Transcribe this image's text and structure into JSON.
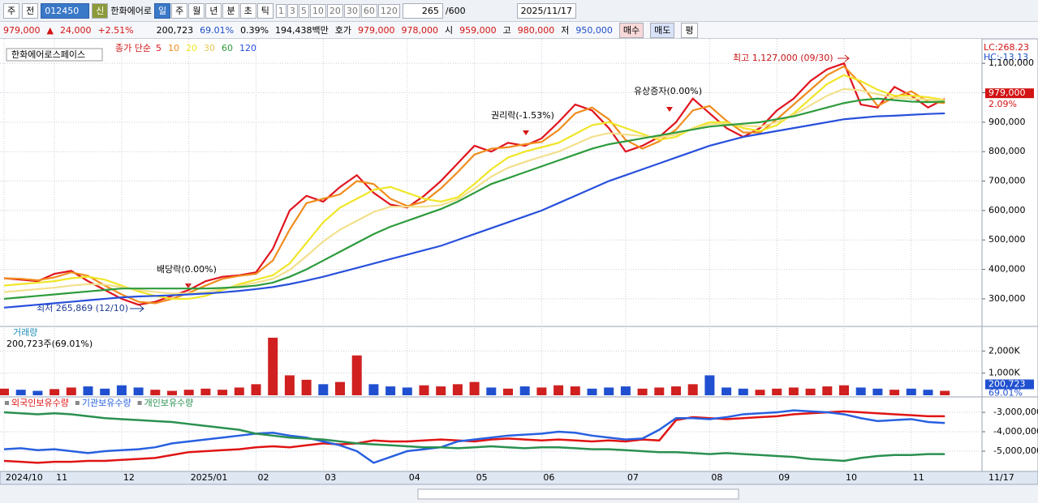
{
  "toolbar": {
    "period": "주",
    "prev": "전",
    "code": "012450",
    "name": "한화에어로",
    "credit": "신",
    "units": [
      "일",
      "주",
      "월",
      "년",
      "분",
      "초",
      "틱"
    ],
    "intervals": [
      "1",
      "3",
      "5",
      "10",
      "20",
      "30",
      "60",
      "120"
    ],
    "count": "265",
    "max": "/600",
    "date": "2025/11/17"
  },
  "info_bar": {
    "price": "979,000",
    "arrow": "▲",
    "change": "24,000",
    "change_pct": "+2.51%",
    "volume": "200,723",
    "volume_pct": "69.01%",
    "turnover_pct": "0.39%",
    "amount": "194,438백만",
    "quote_label": "호가",
    "ask": "979,000",
    "bid": "978,000",
    "open_label": "시",
    "open": "959,000",
    "high_label": "고",
    "high": "980,000",
    "low_label": "저",
    "low": "950,000",
    "buy": "매수",
    "sell": "매도",
    "avg": "평"
  },
  "chart_data": [
    {
      "type": "line",
      "title": "한화에어로스페이스",
      "legend_title": "종가 단순",
      "categories": [
        "2024/10",
        null,
        null,
        "11",
        null,
        null,
        null,
        "12",
        null,
        null,
        null,
        "2025/01",
        null,
        null,
        null,
        "02",
        null,
        null,
        null,
        "03",
        null,
        null,
        null,
        null,
        "04",
        null,
        null,
        null,
        "05",
        null,
        null,
        null,
        "06",
        null,
        null,
        null,
        null,
        "07",
        null,
        null,
        null,
        null,
        "08",
        null,
        null,
        null,
        "09",
        null,
        null,
        null,
        "10",
        null,
        null,
        null,
        "11",
        null,
        null
      ],
      "series": [
        {
          "name": "5",
          "color": "#e0141e",
          "values": [
            370000,
            365000,
            360000,
            385000,
            395000,
            360000,
            330000,
            300000,
            280000,
            290000,
            310000,
            330000,
            360000,
            375000,
            380000,
            390000,
            470000,
            600000,
            650000,
            630000,
            680000,
            720000,
            660000,
            620000,
            610000,
            650000,
            700000,
            760000,
            820000,
            800000,
            830000,
            820000,
            845000,
            900000,
            960000,
            940000,
            880000,
            800000,
            820000,
            850000,
            900000,
            980000,
            930000,
            880000,
            850000,
            880000,
            940000,
            980000,
            1040000,
            1080000,
            1100000,
            960000,
            950000,
            1020000,
            990000,
            950000,
            979000
          ]
        },
        {
          "name": "10",
          "color": "#f08c1e",
          "values": [
            370000,
            368000,
            363000,
            373000,
            390000,
            378000,
            345000,
            315000,
            290000,
            285000,
            300000,
            320000,
            345000,
            368000,
            378000,
            385000,
            430000,
            535000,
            625000,
            640000,
            655000,
            700000,
            690000,
            640000,
            615000,
            630000,
            675000,
            730000,
            790000,
            810000,
            815000,
            825000,
            833000,
            873000,
            930000,
            950000,
            910000,
            840000,
            810000,
            835000,
            875000,
            940000,
            955000,
            905000,
            865000,
            865000,
            910000,
            960000,
            1010000,
            1060000,
            1090000,
            1030000,
            955000,
            985000,
            1005000,
            970000,
            965000
          ]
        },
        {
          "name": "20",
          "color": "#f0e628",
          "values": [
            345000,
            350000,
            355000,
            360000,
            370000,
            375000,
            365000,
            345000,
            325000,
            310000,
            300000,
            300000,
            310000,
            330000,
            350000,
            365000,
            380000,
            420000,
            490000,
            560000,
            610000,
            640000,
            670000,
            680000,
            660000,
            640000,
            630000,
            645000,
            690000,
            740000,
            780000,
            800000,
            815000,
            830000,
            860000,
            890000,
            900000,
            880000,
            860000,
            840000,
            850000,
            880000,
            900000,
            900000,
            880000,
            870000,
            890000,
            930000,
            980000,
            1030000,
            1060000,
            1040000,
            1010000,
            990000,
            990000,
            985000,
            975000
          ]
        },
        {
          "name": "30",
          "color": "#f2e08c",
          "values": [
            323000,
            328000,
            333000,
            338000,
            345000,
            350000,
            348000,
            340000,
            330000,
            323000,
            318000,
            318000,
            323000,
            334000,
            345000,
            355000,
            368000,
            398000,
            445000,
            495000,
            535000,
            565000,
            595000,
            613000,
            613000,
            613000,
            618000,
            638000,
            675000,
            715000,
            745000,
            765000,
            783000,
            800000,
            825000,
            850000,
            863000,
            858000,
            853000,
            848000,
            858000,
            878000,
            893000,
            895000,
            888000,
            885000,
            900000,
            925000,
            958000,
            990000,
            1013000,
            1008000,
            995000,
            983000,
            980000,
            977000,
            973000
          ]
        },
        {
          "name": "60",
          "color": "#2d9b3c",
          "values": [
            300000,
            305000,
            310000,
            315000,
            320000,
            325000,
            330000,
            335000,
            335000,
            335000,
            335000,
            335000,
            335000,
            337000,
            340000,
            345000,
            355000,
            375000,
            400000,
            430000,
            460000,
            490000,
            520000,
            545000,
            565000,
            585000,
            605000,
            630000,
            660000,
            690000,
            710000,
            730000,
            750000,
            770000,
            790000,
            810000,
            825000,
            835000,
            845000,
            855000,
            865000,
            875000,
            885000,
            890000,
            895000,
            900000,
            910000,
            920000,
            935000,
            950000,
            965000,
            975000,
            980000,
            975000,
            970000,
            968000,
            970000
          ]
        },
        {
          "name": "120",
          "color": "#2850dc",
          "values": [
            270000,
            275000,
            280000,
            285000,
            290000,
            295000,
            300000,
            305000,
            308000,
            310000,
            312000,
            315000,
            318000,
            322000,
            327000,
            333000,
            340000,
            350000,
            362000,
            375000,
            390000,
            405000,
            420000,
            435000,
            450000,
            465000,
            480000,
            500000,
            520000,
            540000,
            560000,
            580000,
            600000,
            625000,
            650000,
            675000,
            700000,
            720000,
            740000,
            760000,
            780000,
            800000,
            820000,
            835000,
            850000,
            860000,
            870000,
            880000,
            890000,
            900000,
            910000,
            915000,
            920000,
            922000,
            925000,
            928000,
            930000
          ]
        }
      ],
      "ylim": [
        209000,
        1172000
      ],
      "yticks": [
        {
          "value": 300000,
          "label": "300,000"
        },
        {
          "value": 400000,
          "label": "400,000"
        },
        {
          "value": 500000,
          "label": "500,000"
        },
        {
          "value": 600000,
          "label": "600,000"
        },
        {
          "value": 700000,
          "label": "700,000"
        },
        {
          "value": 800000,
          "label": "800,000"
        },
        {
          "value": 900000,
          "label": "900,000"
        },
        {
          "value": 1000000,
          "label": "1,000,000"
        },
        {
          "value": 1100000,
          "label": "1,100,000"
        }
      ],
      "grid": true,
      "annotations": [
        "최고 1,127,000 (09/30)",
        "최저 265,869 (12/10)",
        "배당락(0.00%)",
        "권리락(-1.53%)",
        "유상증자(0.00%)"
      ],
      "axis_labels": [
        "LC:268.23",
        "HC:-13.13"
      ],
      "last_price": "979,000",
      "last_pct": "2.09%",
      "end_label": "11/17"
    },
    {
      "type": "bar",
      "title": "거래량",
      "subtitle": "200,723주(69.01%)",
      "up_color": "#d02020",
      "down_color": "#2050d0",
      "values": [
        300000,
        250000,
        200000,
        280000,
        350000,
        400000,
        300000,
        450000,
        350000,
        250000,
        200000,
        250000,
        300000,
        250000,
        350000,
        500000,
        2600000,
        900000,
        700000,
        500000,
        600000,
        1800000,
        500000,
        400000,
        350000,
        450000,
        400000,
        500000,
        600000,
        350000,
        300000,
        400000,
        350000,
        450000,
        400000,
        300000,
        350000,
        400000,
        300000,
        350000,
        400000,
        500000,
        900000,
        350000,
        300000,
        250000,
        300000,
        350000,
        300000,
        400000,
        450000,
        350000,
        300000,
        250000,
        300000,
        250000,
        200723
      ],
      "ylim": [
        0,
        3000000
      ],
      "yticks": [
        {
          "value": 1000000,
          "label": "1,000K"
        },
        {
          "value": 2000000,
          "label": "2,000K"
        }
      ],
      "last_label": "200,723",
      "last_pct": "69.01%"
    },
    {
      "type": "line",
      "series": [
        {
          "name": "외국인보유수량",
          "color": "#e01414",
          "values": [
            -5500000,
            -5550000,
            -5600000,
            -5550000,
            -5550000,
            -5500000,
            -5500000,
            -5450000,
            -5400000,
            -5350000,
            -5200000,
            -5050000,
            -5000000,
            -4950000,
            -4900000,
            -4800000,
            -4750000,
            -4800000,
            -4700000,
            -4600000,
            -4650000,
            -4600000,
            -4450000,
            -4500000,
            -4500000,
            -4450000,
            -4400000,
            -4450000,
            -4500000,
            -4400000,
            -4350000,
            -4400000,
            -4450000,
            -4400000,
            -4450000,
            -4500000,
            -4450000,
            -4500000,
            -4400000,
            -4450000,
            -3400000,
            -3250000,
            -3300000,
            -3350000,
            -3300000,
            -3250000,
            -3200000,
            -3100000,
            -3050000,
            -3000000,
            -2950000,
            -3000000,
            -3050000,
            -3100000,
            -3150000,
            -3200000,
            -3200000
          ]
        },
        {
          "name": "기관보유수량",
          "color": "#2860e0",
          "values": [
            -4900000,
            -4850000,
            -4950000,
            -4900000,
            -5000000,
            -5100000,
            -5000000,
            -4950000,
            -4900000,
            -4800000,
            -4600000,
            -4500000,
            -4400000,
            -4300000,
            -4200000,
            -4100000,
            -4050000,
            -4200000,
            -4300000,
            -4500000,
            -4700000,
            -5000000,
            -5600000,
            -5300000,
            -5000000,
            -4900000,
            -4800000,
            -4500000,
            -4400000,
            -4300000,
            -4200000,
            -4150000,
            -4100000,
            -4000000,
            -4050000,
            -4200000,
            -4300000,
            -4400000,
            -4350000,
            -3900000,
            -3300000,
            -3300000,
            -3350000,
            -3250000,
            -3100000,
            -3050000,
            -3000000,
            -2900000,
            -2950000,
            -3000000,
            -3100000,
            -3300000,
            -3450000,
            -3400000,
            -3350000,
            -3500000,
            -3550000
          ]
        },
        {
          "name": "개인보유수량",
          "color": "#2a9050",
          "values": [
            -3000000,
            -3050000,
            -3100000,
            -3050000,
            -3100000,
            -3200000,
            -3300000,
            -3350000,
            -3400000,
            -3450000,
            -3500000,
            -3600000,
            -3700000,
            -3800000,
            -3900000,
            -4100000,
            -4200000,
            -4300000,
            -4350000,
            -4400000,
            -4500000,
            -4600000,
            -4650000,
            -4700000,
            -4750000,
            -4800000,
            -4800000,
            -4850000,
            -4800000,
            -4750000,
            -4800000,
            -4850000,
            -4800000,
            -4800000,
            -4850000,
            -4900000,
            -4900000,
            -4950000,
            -5000000,
            -5050000,
            -5050000,
            -5100000,
            -5150000,
            -5100000,
            -5150000,
            -5200000,
            -5250000,
            -5300000,
            -5400000,
            -5450000,
            -5500000,
            -5350000,
            -5250000,
            -5200000,
            -5200000,
            -5150000,
            -5150000
          ]
        }
      ],
      "ylim": [
        -5960000,
        -2330000
      ],
      "yticks": [
        {
          "value": -3000000,
          "label": "-3,000,000"
        },
        {
          "value": -4000000,
          "label": "-4,000,000"
        },
        {
          "value": -5000000,
          "label": "-5,000,000"
        }
      ]
    }
  ]
}
